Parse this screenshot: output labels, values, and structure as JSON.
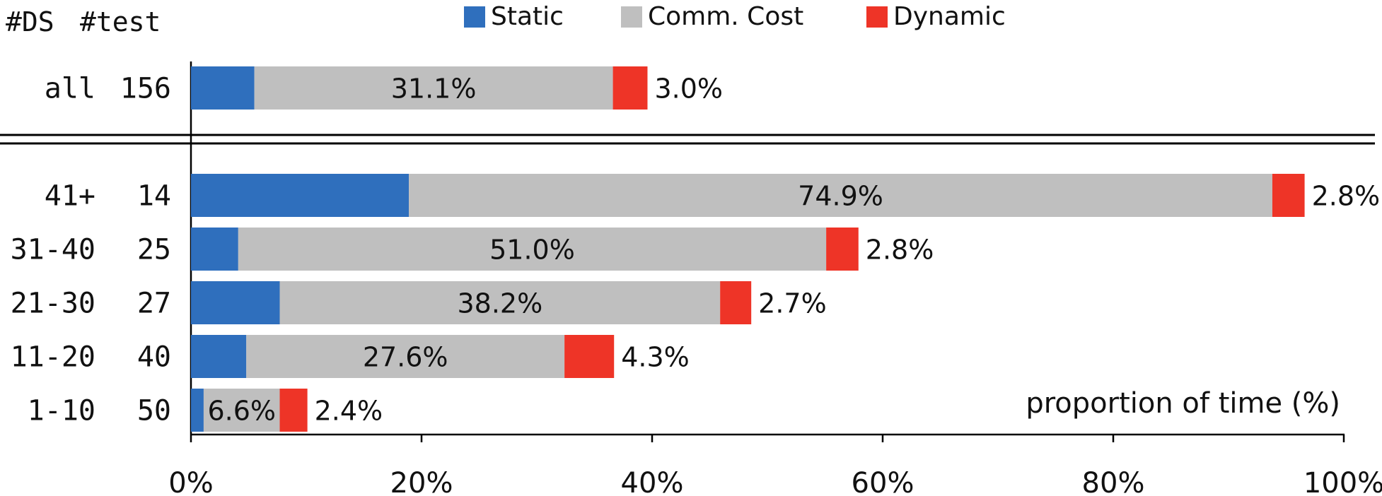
{
  "chart_data": {
    "type": "bar",
    "stacked": true,
    "orientation": "horizontal",
    "header": {
      "ds": "#DS",
      "test": "#test"
    },
    "legend": {
      "placement": "top",
      "items": [
        {
          "name": "Static",
          "color": "#2f6fbd"
        },
        {
          "name": "Comm. Cost",
          "color": "#bfbfbf"
        },
        {
          "name": "Dynamic",
          "color": "#ee3427"
        }
      ]
    },
    "xlabel": "proportion of time (%)",
    "xlim": [
      0,
      100
    ],
    "xticks": [
      "0%",
      "20%",
      "40%",
      "60%",
      "80%",
      "100%"
    ],
    "grid": false,
    "rows": [
      {
        "ds": "all",
        "test": "156",
        "values": [
          5.5,
          31.1,
          3.0
        ],
        "comm_label": "31.1%",
        "dyn_label": "3.0%",
        "group": "summary"
      },
      {
        "ds": "41+",
        "test": "14",
        "values": [
          18.9,
          74.9,
          2.8
        ],
        "comm_label": "74.9%",
        "dyn_label": "2.8%",
        "group": "detail"
      },
      {
        "ds": "31-40",
        "test": "25",
        "values": [
          4.1,
          51.0,
          2.8
        ],
        "comm_label": "51.0%",
        "dyn_label": "2.8%",
        "group": "detail"
      },
      {
        "ds": "21-30",
        "test": "27",
        "values": [
          7.7,
          38.2,
          2.7
        ],
        "comm_label": "38.2%",
        "dyn_label": "2.7%",
        "group": "detail"
      },
      {
        "ds": "11-20",
        "test": "40",
        "values": [
          4.8,
          27.6,
          4.3
        ],
        "comm_label": "27.6%",
        "dyn_label": "4.3%",
        "group": "detail"
      },
      {
        "ds": "1-10",
        "test": "50",
        "values": [
          1.1,
          6.6,
          2.4
        ],
        "comm_label": "6.6%",
        "dyn_label": "2.4%",
        "group": "detail"
      }
    ]
  }
}
